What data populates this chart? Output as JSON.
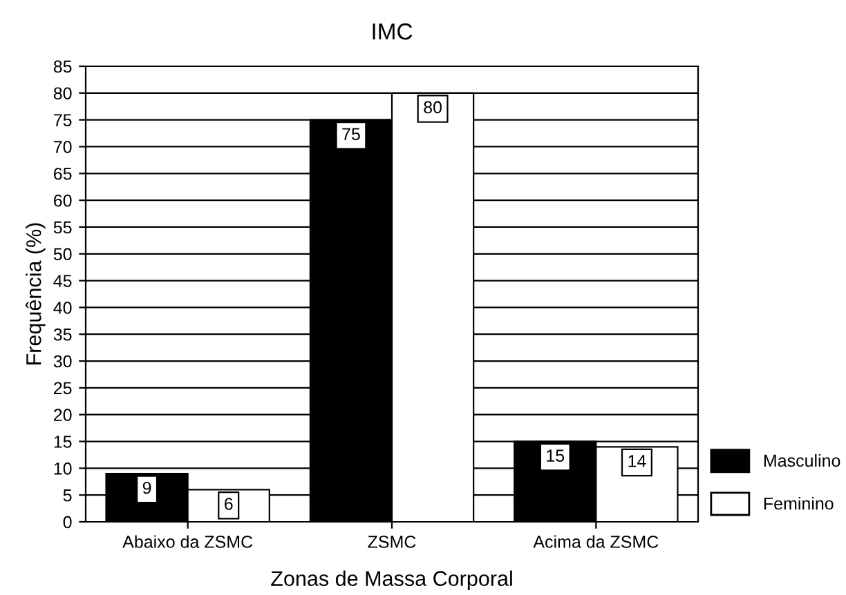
{
  "chart_data": {
    "type": "bar",
    "title": "IMC",
    "xlabel": "Zonas de Massa Corporal",
    "ylabel": "Frequência (%)",
    "categories": [
      "Abaixo da ZSMC",
      "ZSMC",
      "Acima da ZSMC"
    ],
    "series": [
      {
        "name": "Masculino",
        "color": "#000000",
        "values": [
          9,
          75,
          15
        ]
      },
      {
        "name": "Feminino",
        "color": "#ffffff",
        "values": [
          6,
          80,
          14
        ]
      }
    ],
    "ylim": [
      0,
      85
    ],
    "yticks": [
      0,
      5,
      10,
      15,
      20,
      25,
      30,
      35,
      40,
      45,
      50,
      55,
      60,
      65,
      70,
      75,
      80,
      85
    ],
    "grid": "y",
    "legend": "right",
    "data_labels": true
  }
}
